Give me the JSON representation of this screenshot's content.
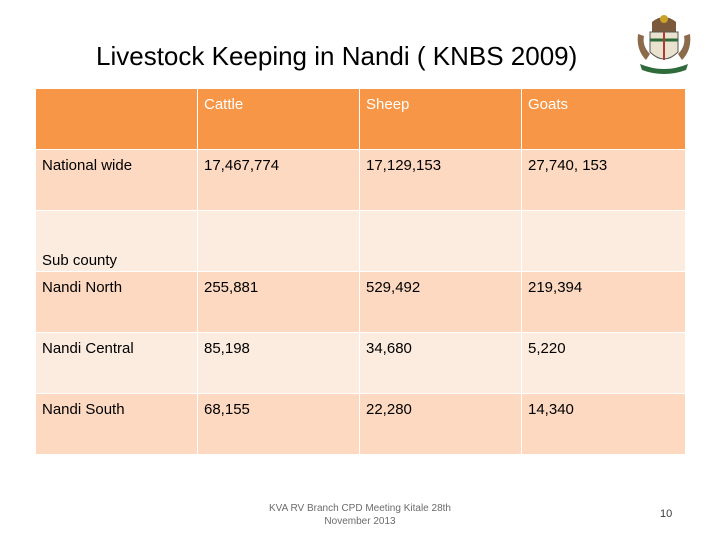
{
  "slide": {
    "title": "Livestock  Keeping in Nandi ( KNBS 2009)",
    "footer_line1": "KVA RV Branch CPD Meeting Kitale 28th",
    "footer_line2": "November 2013",
    "page_number": "10"
  },
  "table": {
    "headers": [
      "",
      "Cattle",
      "Sheep",
      "Goats"
    ],
    "rows": [
      [
        "National wide",
        "17,467,774",
        "17,129,153",
        "27,740, 153"
      ],
      [
        "Sub county",
        "",
        "",
        ""
      ],
      [
        "Nandi North",
        "255,881",
        "529,492",
        "219,394"
      ],
      [
        "Nandi Central",
        "85,198",
        "34,680",
        "5,220"
      ],
      [
        "Nandi South",
        "68,155",
        "22,280",
        "14,340"
      ]
    ]
  },
  "colors": {
    "header_fill": "#f79646",
    "row_dark": "#fdd9c2",
    "row_light": "#fcecdf"
  }
}
